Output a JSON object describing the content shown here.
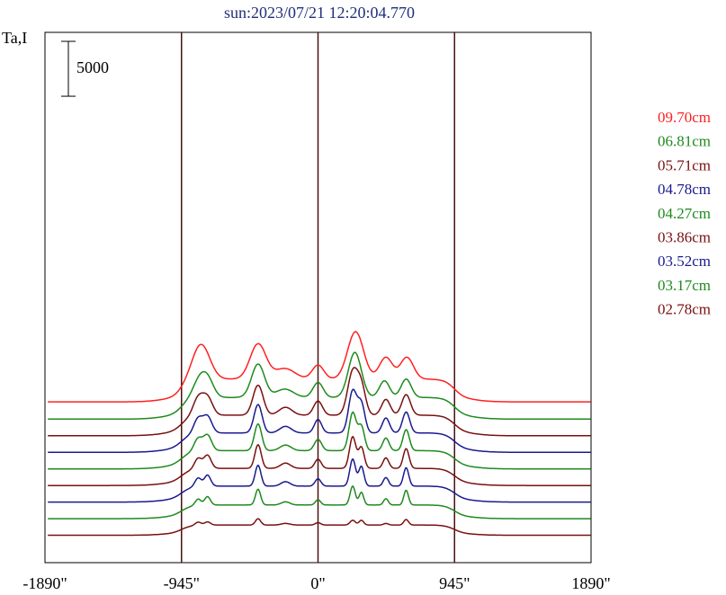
{
  "chart_data": {
    "type": "line",
    "title": "sun:2023/07/21 12:20:04.770",
    "ylabel": "Ta,I",
    "scale_bar_label": "5000",
    "scale_bar_value": 5000,
    "xlim": [
      -1890,
      1890
    ],
    "x_ticks": [
      -1890,
      -945,
      0,
      945,
      1890
    ],
    "x_tick_labels": [
      "-1890\"",
      "-945\"",
      "0\"",
      "945\"",
      "1890\""
    ],
    "vlines": [
      -945,
      0,
      945
    ],
    "grid": false,
    "legend_position": "right",
    "series": [
      {
        "name": "09.70cm",
        "color": "#ff2020",
        "offset": 23500,
        "amp": 1.0,
        "peaks": [
          [
            -810,
            1.0,
            60
          ],
          [
            -415,
            1.0,
            55
          ],
          [
            -230,
            0.3,
            70
          ],
          [
            0,
            0.4,
            40
          ],
          [
            260,
            1.35,
            55
          ],
          [
            470,
            0.62,
            45
          ],
          [
            615,
            0.62,
            45
          ]
        ],
        "bump_amp": 0.8
      },
      {
        "name": "06.81cm",
        "color": "#1e8a1e",
        "offset": 20800,
        "amp": 0.95,
        "peaks": [
          [
            -820,
            0.55,
            45
          ],
          [
            -760,
            0.45,
            40
          ],
          [
            -415,
            1.0,
            45
          ],
          [
            -230,
            0.25,
            60
          ],
          [
            0,
            0.45,
            35
          ],
          [
            255,
            1.35,
            45
          ],
          [
            460,
            0.5,
            35
          ],
          [
            610,
            0.55,
            35
          ]
        ],
        "bump_amp": 0.8
      },
      {
        "name": "05.71cm",
        "color": "#7a1010",
        "offset": 18200,
        "amp": 0.9,
        "peaks": [
          [
            -830,
            0.55,
            35
          ],
          [
            -765,
            0.55,
            35
          ],
          [
            -415,
            0.95,
            35
          ],
          [
            -225,
            0.25,
            45
          ],
          [
            0,
            0.45,
            30
          ],
          [
            240,
            1.35,
            35
          ],
          [
            300,
            0.85,
            30
          ],
          [
            470,
            0.5,
            30
          ],
          [
            610,
            0.65,
            30
          ]
        ],
        "bump_amp": 0.8
      },
      {
        "name": "04.78cm",
        "color": "#1a1a90",
        "offset": 15600,
        "amp": 0.85,
        "peaks": [
          [
            -830,
            0.5,
            30
          ],
          [
            -765,
            0.55,
            30
          ],
          [
            -415,
            0.95,
            28
          ],
          [
            -225,
            0.22,
            40
          ],
          [
            0,
            0.45,
            25
          ],
          [
            240,
            1.4,
            28
          ],
          [
            300,
            0.95,
            25
          ],
          [
            470,
            0.5,
            25
          ],
          [
            610,
            0.7,
            25
          ]
        ],
        "bump_amp": 0.8
      },
      {
        "name": "04.27cm",
        "color": "#1e8a1e",
        "offset": 13000,
        "amp": 0.8,
        "peaks": [
          [
            -830,
            0.45,
            28
          ],
          [
            -765,
            0.55,
            28
          ],
          [
            -415,
            0.95,
            25
          ],
          [
            -225,
            0.2,
            38
          ],
          [
            0,
            0.4,
            25
          ],
          [
            240,
            1.35,
            25
          ],
          [
            300,
            0.85,
            22
          ],
          [
            470,
            0.45,
            22
          ],
          [
            610,
            0.75,
            22
          ]
        ],
        "bump_amp": 0.8
      },
      {
        "name": "03.86cm",
        "color": "#7a1010",
        "offset": 10400,
        "amp": 0.75,
        "peaks": [
          [
            -830,
            0.4,
            25
          ],
          [
            -765,
            0.5,
            25
          ],
          [
            -415,
            0.9,
            22
          ],
          [
            -225,
            0.2,
            35
          ],
          [
            0,
            0.35,
            22
          ],
          [
            240,
            1.2,
            22
          ],
          [
            300,
            0.8,
            20
          ],
          [
            470,
            0.4,
            20
          ],
          [
            610,
            0.75,
            20
          ]
        ],
        "bump_amp": 0.8
      },
      {
        "name": "03.52cm",
        "color": "#1a1a90",
        "offset": 7800,
        "amp": 0.7,
        "peaks": [
          [
            -830,
            0.35,
            22
          ],
          [
            -765,
            0.45,
            22
          ],
          [
            -415,
            0.85,
            20
          ],
          [
            -225,
            0.18,
            32
          ],
          [
            0,
            0.3,
            20
          ],
          [
            240,
            1.1,
            20
          ],
          [
            300,
            0.8,
            18
          ],
          [
            470,
            0.35,
            18
          ],
          [
            610,
            0.75,
            18
          ]
        ],
        "bump_amp": 0.8
      },
      {
        "name": "03.17cm",
        "color": "#1e8a1e",
        "offset": 5200,
        "amp": 0.6,
        "peaks": [
          [
            -830,
            0.3,
            20
          ],
          [
            -765,
            0.4,
            20
          ],
          [
            -415,
            0.75,
            18
          ],
          [
            -225,
            0.15,
            30
          ],
          [
            0,
            0.25,
            18
          ],
          [
            240,
            0.9,
            18
          ],
          [
            300,
            0.6,
            16
          ],
          [
            470,
            0.3,
            16
          ],
          [
            610,
            0.7,
            16
          ]
        ],
        "bump_amp": 0.7
      },
      {
        "name": "02.78cm",
        "color": "#7a1010",
        "offset": 2600,
        "amp": 0.45,
        "peaks": [
          [
            -830,
            0.2,
            20
          ],
          [
            -765,
            0.2,
            20
          ],
          [
            -415,
            0.4,
            18
          ],
          [
            -225,
            0.1,
            30
          ],
          [
            0,
            0.15,
            18
          ],
          [
            240,
            0.3,
            18
          ],
          [
            300,
            0.3,
            16
          ],
          [
            470,
            0.1,
            16
          ],
          [
            610,
            0.35,
            16
          ]
        ],
        "bump_amp": 0.5
      }
    ]
  }
}
